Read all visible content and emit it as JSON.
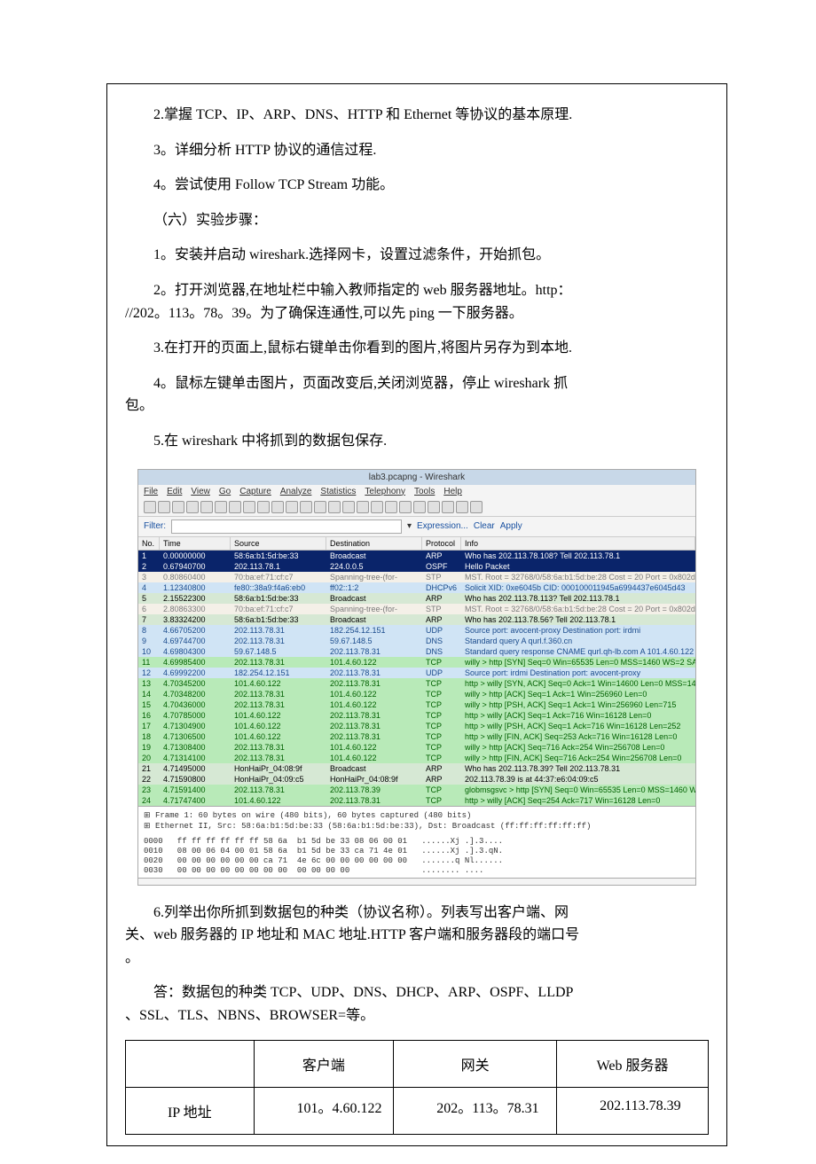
{
  "text": {
    "p1": "2.掌握 TCP、IP、ARP、DNS、HTTP 和 Ethernet 等协议的基本原理.",
    "p2": "3。详细分析 HTTP 协议的通信过程.",
    "p3": "4。尝试使用 Follow TCP Stream 功能。",
    "p4": "（六）实验步骤：",
    "p5": "1。安装并启动 wireshark.选择网卡，设置过滤条件，开始抓包。",
    "p6a": "2。打开浏览器,在地址栏中输入教师指定的 web 服务器地址。http：",
    "p6b": "//202。113。78。39。为了确保连通性,可以先 ping 一下服务器。",
    "p7": "3.在打开的页面上,鼠标右键单击你看到的图片,将图片另存为到本地.",
    "p8a": "4。鼠标左键单击图片，页面改变后,关闭浏览器，停止 wireshark 抓",
    "p8b": "包。",
    "p9": "5.在 wireshark 中将抓到的数据包保存.",
    "p10a": "6.列举出你所抓到数据包的种类（协议名称）。列表写出客户端、网",
    "p10b": "关、web 服务器的 IP 地址和 MAC 地址.HTTP 客户端和服务器段的端口号",
    "p10c": "。",
    "p11a": "答：数据包的种类 TCP、UDP、DNS、DHCP、ARP、OSPF、LLDP",
    "p11b": "、SSL、TLS、NBNS、BROWSER=等。"
  },
  "ws": {
    "title": "lab3.pcapng - Wireshark",
    "menu": [
      "File",
      "Edit",
      "View",
      "Go",
      "Capture",
      "Analyze",
      "Statistics",
      "Telephony",
      "Tools",
      "Help"
    ],
    "filter_label": "Filter:",
    "filter_value": "",
    "filter_links": [
      "Expression...",
      "Clear",
      "Apply"
    ],
    "columns": [
      "No.",
      "Time",
      "Source",
      "Destination",
      "Protocol",
      "Info"
    ],
    "colors": {
      "arp_bg": "#d6e8d4",
      "arp_fg": "#000000",
      "sel_bg": "#0a246a",
      "sel_fg": "#ffffff",
      "stp_bg": "#f4f0e8",
      "stp_fg": "#7a7a7a",
      "dhcp_bg": "#d0e4f5",
      "dhcp_fg": "#1a4b8c",
      "dns_bg": "#d0e4f5",
      "dns_fg": "#1a4b8c",
      "udp_bg": "#d0e4f5",
      "udp_fg": "#1a4b8c",
      "tcp_bg": "#b8eab8",
      "tcp_fg": "#006000",
      "http_bg": "#b8eab8",
      "http_fg": "#006000"
    },
    "rows": [
      {
        "no": "1",
        "time": "0.00000000",
        "src": "58:6a:b1:5d:be:33",
        "dst": "Broadcast",
        "proto": "ARP",
        "info": "Who has 202.113.78.108? Tell 202.113.78.1",
        "style": "sel"
      },
      {
        "no": "2",
        "time": "0.67940700",
        "src": "202.113.78.1",
        "dst": "224.0.0.5",
        "proto": "OSPF",
        "info": "Hello Packet",
        "style": "sel"
      },
      {
        "no": "3",
        "time": "0.80860400",
        "src": "70:ba:ef:71:cf:c7",
        "dst": "Spanning-tree-(for-",
        "proto": "STP",
        "info": "MST. Root = 32768/0/58:6a:b1:5d:be:28  Cost = 20  Port = 0x802d",
        "style": "stp"
      },
      {
        "no": "4",
        "time": "1.12340800",
        "src": "fe80::38a9:f4a6:eb0",
        "dst": "ff02::1:2",
        "proto": "DHCPv6",
        "info": "Solicit XID: 0xe6045b CID: 000100011945a6994437e6045d43",
        "style": "dhcp"
      },
      {
        "no": "5",
        "time": "2.15522300",
        "src": "58:6a:b1:5d:be:33",
        "dst": "Broadcast",
        "proto": "ARP",
        "info": "Who has 202.113.78.113? Tell 202.113.78.1",
        "style": "arp"
      },
      {
        "no": "6",
        "time": "2.80863300",
        "src": "70:ba:ef:71:cf:c7",
        "dst": "Spanning-tree-(for-",
        "proto": "STP",
        "info": "MST. Root = 32768/0/58:6a:b1:5d:be:28  Cost = 20  Port = 0x802d",
        "style": "stp"
      },
      {
        "no": "7",
        "time": "3.83324200",
        "src": "58:6a:b1:5d:be:33",
        "dst": "Broadcast",
        "proto": "ARP",
        "info": "Who has 202.113.78.56? Tell 202.113.78.1",
        "style": "arp"
      },
      {
        "no": "8",
        "time": "4.66705200",
        "src": "202.113.78.31",
        "dst": "182.254.12.151",
        "proto": "UDP",
        "info": "Source port: avocent-proxy  Destination port: irdmi",
        "style": "udp"
      },
      {
        "no": "9",
        "time": "4.69744700",
        "src": "202.113.78.31",
        "dst": "59.67.148.5",
        "proto": "DNS",
        "info": "Standard query A qurl.f.360.cn",
        "style": "dns"
      },
      {
        "no": "10",
        "time": "4.69804300",
        "src": "59.67.148.5",
        "dst": "202.113.78.31",
        "proto": "DNS",
        "info": "Standard query response CNAME qurl.qh-lb.com A 101.4.60.122 A 1",
        "style": "dns"
      },
      {
        "no": "11",
        "time": "4.69985400",
        "src": "202.113.78.31",
        "dst": "101.4.60.122",
        "proto": "TCP",
        "info": "willy > http [SYN] Seq=0 Win=65535 Len=0 MSS=1460 WS=2 SACK_PER",
        "style": "tcp"
      },
      {
        "no": "12",
        "time": "4.69992200",
        "src": "182.254.12.151",
        "dst": "202.113.78.31",
        "proto": "UDP",
        "info": "Source port: irdmi  Destination port: avocent-proxy",
        "style": "udp"
      },
      {
        "no": "13",
        "time": "4.70345200",
        "src": "101.4.60.122",
        "dst": "202.113.78.31",
        "proto": "TCP",
        "info": "http > willy [SYN, ACK] Seq=0 Ack=1 Win=14600 Len=0 MSS=1460 SA",
        "style": "tcp"
      },
      {
        "no": "14",
        "time": "4.70348200",
        "src": "202.113.78.31",
        "dst": "101.4.60.122",
        "proto": "TCP",
        "info": "willy > http [ACK] Seq=1 Ack=1 Win=256960 Len=0",
        "style": "tcp"
      },
      {
        "no": "15",
        "time": "4.70436000",
        "src": "202.113.78.31",
        "dst": "101.4.60.122",
        "proto": "TCP",
        "info": "willy > http [PSH, ACK] Seq=1 Ack=1 Win=256960 Len=715",
        "style": "tcp"
      },
      {
        "no": "16",
        "time": "4.70785000",
        "src": "101.4.60.122",
        "dst": "202.113.78.31",
        "proto": "TCP",
        "info": "http > willy [ACK] Seq=1 Ack=716 Win=16128 Len=0",
        "style": "tcp"
      },
      {
        "no": "17",
        "time": "4.71304900",
        "src": "101.4.60.122",
        "dst": "202.113.78.31",
        "proto": "TCP",
        "info": "http > willy [PSH, ACK] Seq=1 Ack=716 Win=16128 Len=252",
        "style": "tcp"
      },
      {
        "no": "18",
        "time": "4.71306500",
        "src": "101.4.60.122",
        "dst": "202.113.78.31",
        "proto": "TCP",
        "info": "http > willy [FIN, ACK] Seq=253 Ack=716 Win=16128 Len=0",
        "style": "tcp"
      },
      {
        "no": "19",
        "time": "4.71308400",
        "src": "202.113.78.31",
        "dst": "101.4.60.122",
        "proto": "TCP",
        "info": "willy > http [ACK] Seq=716 Ack=254 Win=256708 Len=0",
        "style": "tcp"
      },
      {
        "no": "20",
        "time": "4.71314100",
        "src": "202.113.78.31",
        "dst": "101.4.60.122",
        "proto": "TCP",
        "info": "willy > http [FIN, ACK] Seq=716 Ack=254 Win=256708 Len=0",
        "style": "tcp"
      },
      {
        "no": "21",
        "time": "4.71495000",
        "src": "HonHaiPr_04:08:9f",
        "dst": "Broadcast",
        "proto": "ARP",
        "info": "Who has 202.113.78.39? Tell 202.113.78.31",
        "style": "arp"
      },
      {
        "no": "22",
        "time": "4.71590800",
        "src": "HonHaiPr_04:09:c5",
        "dst": "HonHaiPr_04:08:9f",
        "proto": "ARP",
        "info": "202.113.78.39 is at 44:37:e6:04:09:c5",
        "style": "arp"
      },
      {
        "no": "23",
        "time": "4.71591400",
        "src": "202.113.78.31",
        "dst": "202.113.78.39",
        "proto": "TCP",
        "info": "globmsgsvc > http [SYN] Seq=0 Win=65535 Len=0 MSS=1460 WS=2 SAC",
        "style": "tcp"
      },
      {
        "no": "24",
        "time": "4.71747400",
        "src": "101.4.60.122",
        "dst": "202.113.78.31",
        "proto": "TCP",
        "info": "http > willy [ACK] Seq=254 Ack=717 Win=16128 Len=0",
        "style": "tcp"
      }
    ],
    "frame": [
      "⊞ Frame 1: 60 bytes on wire (480 bits), 60 bytes captured (480 bits)",
      "⊞ Ethernet II, Src: 58:6a:b1:5d:be:33 (58:6a:b1:5d:be:33), Dst: Broadcast (ff:ff:ff:ff:ff:ff)"
    ],
    "hex": [
      "0000   ff ff ff ff ff ff 58 6a  b1 5d be 33 08 06 00 01   ......Xj .].3....",
      "0010   08 00 06 04 00 01 58 6a  b1 5d be 33 ca 71 4e 01   ......Xj .].3.qN.",
      "0020   00 00 00 00 00 00 ca 71  4e 6c 00 00 00 00 00 00   .......q Nl......",
      "0030   00 00 00 00 00 00 00 00  00 00 00 00               ........ ...."
    ]
  },
  "table": {
    "headers": [
      "",
      "客户端",
      "网关",
      "Web 服务器"
    ],
    "row_label": "IP 地址",
    "cells": [
      "101。4.60.122",
      "202。113。78.31",
      "202.113.78.39"
    ]
  }
}
